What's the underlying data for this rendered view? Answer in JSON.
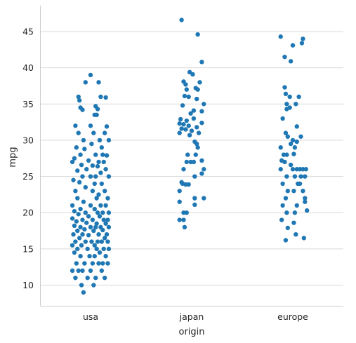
{
  "chart_data": {
    "type": "scatter",
    "subtype": "strip",
    "xlabel": "origin",
    "ylabel": "mpg",
    "ylim": [
      7,
      48.5
    ],
    "yticks": [
      10,
      15,
      20,
      25,
      30,
      35,
      40,
      45
    ],
    "grid": "horizontal",
    "color": "#1f77b4",
    "categories": [
      "usa",
      "japan",
      "europe"
    ],
    "series": [
      {
        "category": "usa",
        "points": [
          {
            "x": 0.0,
            "y": 39.0
          },
          {
            "x": -0.05,
            "y": 38.0
          },
          {
            "x": 0.08,
            "y": 38.0
          },
          {
            "x": 0.1,
            "y": 36.0
          },
          {
            "x": -0.12,
            "y": 36.0
          },
          {
            "x": 0.15,
            "y": 35.9
          },
          {
            "x": -0.11,
            "y": 35.5
          },
          {
            "x": 0.05,
            "y": 34.7
          },
          {
            "x": -0.1,
            "y": 34.5
          },
          {
            "x": 0.07,
            "y": 34.3
          },
          {
            "x": -0.08,
            "y": 34.2
          },
          {
            "x": 0.04,
            "y": 33.5
          },
          {
            "x": 0.06,
            "y": 33.5
          },
          {
            "x": -0.15,
            "y": 32.0
          },
          {
            "x": 0.0,
            "y": 32.0
          },
          {
            "x": 0.16,
            "y": 31.9
          },
          {
            "x": -0.12,
            "y": 31.0
          },
          {
            "x": 0.03,
            "y": 31.0
          },
          {
            "x": 0.14,
            "y": 31.0
          },
          {
            "x": -0.07,
            "y": 30.0
          },
          {
            "x": 0.09,
            "y": 30.0
          },
          {
            "x": 0.18,
            "y": 30.0
          },
          {
            "x": -0.14,
            "y": 29.0
          },
          {
            "x": 0.01,
            "y": 29.5
          },
          {
            "x": 0.11,
            "y": 29.0
          },
          {
            "x": -0.06,
            "y": 28.8
          },
          {
            "x": -0.1,
            "y": 28.0
          },
          {
            "x": 0.05,
            "y": 28.0
          },
          {
            "x": 0.12,
            "y": 28.0
          },
          {
            "x": 0.16,
            "y": 27.9
          },
          {
            "x": -0.16,
            "y": 27.5
          },
          {
            "x": -0.02,
            "y": 27.2
          },
          {
            "x": 0.08,
            "y": 27.0
          },
          {
            "x": 0.13,
            "y": 27.0
          },
          {
            "x": -0.18,
            "y": 27.0
          },
          {
            "x": -0.09,
            "y": 26.6
          },
          {
            "x": 0.02,
            "y": 26.5
          },
          {
            "x": 0.07,
            "y": 26.4
          },
          {
            "x": -0.04,
            "y": 26.0
          },
          {
            "x": 0.15,
            "y": 26.0
          },
          {
            "x": -0.13,
            "y": 25.8
          },
          {
            "x": 0.1,
            "y": 25.5
          },
          {
            "x": -0.08,
            "y": 25.0
          },
          {
            "x": 0.0,
            "y": 25.0
          },
          {
            "x": 0.05,
            "y": 25.0
          },
          {
            "x": 0.18,
            "y": 25.0
          },
          {
            "x": -0.17,
            "y": 24.5
          },
          {
            "x": -0.11,
            "y": 24.2
          },
          {
            "x": 0.04,
            "y": 24.0
          },
          {
            "x": 0.11,
            "y": 24.0
          },
          {
            "x": -0.05,
            "y": 23.5
          },
          {
            "x": 0.14,
            "y": 23.0
          },
          {
            "x": -0.15,
            "y": 23.0
          },
          {
            "x": 0.02,
            "y": 23.0
          },
          {
            "x": 0.08,
            "y": 22.5
          },
          {
            "x": -0.13,
            "y": 22.0
          },
          {
            "x": 0.06,
            "y": 22.0
          },
          {
            "x": 0.17,
            "y": 22.0
          },
          {
            "x": -0.07,
            "y": 21.5
          },
          {
            "x": -0.18,
            "y": 21.0
          },
          {
            "x": 0.0,
            "y": 21.0
          },
          {
            "x": 0.1,
            "y": 21.0
          },
          {
            "x": 0.15,
            "y": 21.0
          },
          {
            "x": -0.1,
            "y": 20.5
          },
          {
            "x": 0.04,
            "y": 20.5
          },
          {
            "x": -0.16,
            "y": 20.2
          },
          {
            "x": -0.05,
            "y": 20.0
          },
          {
            "x": 0.07,
            "y": 20.0
          },
          {
            "x": 0.12,
            "y": 20.0
          },
          {
            "x": 0.18,
            "y": 20.0
          },
          {
            "x": -0.12,
            "y": 19.8
          },
          {
            "x": -0.02,
            "y": 19.5
          },
          {
            "x": 0.09,
            "y": 19.5
          },
          {
            "x": -0.18,
            "y": 19.2
          },
          {
            "x": -0.08,
            "y": 19.0
          },
          {
            "x": 0.02,
            "y": 19.0
          },
          {
            "x": 0.13,
            "y": 19.0
          },
          {
            "x": 0.17,
            "y": 19.0
          },
          {
            "x": -0.14,
            "y": 18.8
          },
          {
            "x": -0.04,
            "y": 18.6
          },
          {
            "x": 0.06,
            "y": 18.5
          },
          {
            "x": 0.15,
            "y": 18.5
          },
          {
            "x": -0.16,
            "y": 18.2
          },
          {
            "x": -0.1,
            "y": 18.0
          },
          {
            "x": 0.0,
            "y": 18.0
          },
          {
            "x": 0.05,
            "y": 18.0
          },
          {
            "x": 0.1,
            "y": 18.0
          },
          {
            "x": 0.18,
            "y": 18.0
          },
          {
            "x": -0.06,
            "y": 17.7
          },
          {
            "x": 0.12,
            "y": 17.6
          },
          {
            "x": -0.13,
            "y": 17.5
          },
          {
            "x": 0.03,
            "y": 17.5
          },
          {
            "x": -0.17,
            "y": 17.0
          },
          {
            "x": -0.08,
            "y": 17.0
          },
          {
            "x": 0.08,
            "y": 17.0
          },
          {
            "x": 0.16,
            "y": 17.0
          },
          {
            "x": -0.02,
            "y": 16.9
          },
          {
            "x": -0.11,
            "y": 16.5
          },
          {
            "x": 0.14,
            "y": 16.5
          },
          {
            "x": -0.15,
            "y": 16.0
          },
          {
            "x": -0.05,
            "y": 16.0
          },
          {
            "x": 0.01,
            "y": 16.0
          },
          {
            "x": 0.07,
            "y": 16.0
          },
          {
            "x": 0.11,
            "y": 16.0
          },
          {
            "x": 0.17,
            "y": 16.0
          },
          {
            "x": -0.18,
            "y": 15.5
          },
          {
            "x": -0.09,
            "y": 15.5
          },
          {
            "x": 0.04,
            "y": 15.5
          },
          {
            "x": -0.13,
            "y": 15.0
          },
          {
            "x": -0.03,
            "y": 15.0
          },
          {
            "x": 0.06,
            "y": 15.0
          },
          {
            "x": 0.13,
            "y": 15.0
          },
          {
            "x": 0.18,
            "y": 15.0
          },
          {
            "x": -0.16,
            "y": 14.5
          },
          {
            "x": 0.09,
            "y": 14.5
          },
          {
            "x": -0.1,
            "y": 14.0
          },
          {
            "x": -0.01,
            "y": 14.0
          },
          {
            "x": 0.04,
            "y": 14.0
          },
          {
            "x": 0.15,
            "y": 14.0
          },
          {
            "x": -0.14,
            "y": 13.0
          },
          {
            "x": -0.06,
            "y": 13.0
          },
          {
            "x": 0.02,
            "y": 13.0
          },
          {
            "x": 0.08,
            "y": 13.0
          },
          {
            "x": 0.12,
            "y": 13.0
          },
          {
            "x": 0.17,
            "y": 13.0
          },
          {
            "x": -0.18,
            "y": 12.0
          },
          {
            "x": -0.08,
            "y": 12.0
          },
          {
            "x": -0.12,
            "y": 12.0
          },
          {
            "x": 0.0,
            "y": 12.0
          },
          {
            "x": 0.11,
            "y": 12.0
          },
          {
            "x": -0.15,
            "y": 11.0
          },
          {
            "x": -0.03,
            "y": 11.0
          },
          {
            "x": 0.05,
            "y": 11.0
          },
          {
            "x": 0.14,
            "y": 11.0
          },
          {
            "x": -0.09,
            "y": 10.0
          },
          {
            "x": 0.03,
            "y": 10.0
          },
          {
            "x": -0.07,
            "y": 9.0
          }
        ]
      },
      {
        "category": "japan",
        "points": [
          {
            "x": -0.1,
            "y": 46.6
          },
          {
            "x": 0.06,
            "y": 44.6
          },
          {
            "x": 0.1,
            "y": 40.8
          },
          {
            "x": -0.02,
            "y": 39.4
          },
          {
            "x": 0.01,
            "y": 39.1
          },
          {
            "x": -0.08,
            "y": 38.1
          },
          {
            "x": -0.06,
            "y": 37.7
          },
          {
            "x": 0.08,
            "y": 38.0
          },
          {
            "x": 0.04,
            "y": 37.2
          },
          {
            "x": -0.05,
            "y": 37.0
          },
          {
            "x": 0.06,
            "y": 37.0
          },
          {
            "x": -0.07,
            "y": 36.1
          },
          {
            "x": -0.03,
            "y": 36.0
          },
          {
            "x": 0.05,
            "y": 35.7
          },
          {
            "x": 0.12,
            "y": 35.0
          },
          {
            "x": -0.09,
            "y": 34.8
          },
          {
            "x": 0.02,
            "y": 34.1
          },
          {
            "x": 0.1,
            "y": 34.0
          },
          {
            "x": -0.01,
            "y": 33.7
          },
          {
            "x": 0.02,
            "y": 33.0
          },
          {
            "x": -0.11,
            "y": 32.9
          },
          {
            "x": -0.05,
            "y": 32.7
          },
          {
            "x": -0.12,
            "y": 32.3
          },
          {
            "x": -0.08,
            "y": 32.2
          },
          {
            "x": 0.1,
            "y": 32.4
          },
          {
            "x": -0.03,
            "y": 32.0
          },
          {
            "x": 0.05,
            "y": 31.8
          },
          {
            "x": -0.1,
            "y": 31.6
          },
          {
            "x": -0.06,
            "y": 31.5
          },
          {
            "x": 0.0,
            "y": 31.3
          },
          {
            "x": 0.07,
            "y": 31.0
          },
          {
            "x": -0.12,
            "y": 31.0
          },
          {
            "x": -0.02,
            "y": 30.7
          },
          {
            "x": 0.03,
            "y": 29.8
          },
          {
            "x": 0.05,
            "y": 29.5
          },
          {
            "x": 0.06,
            "y": 29.0
          },
          {
            "x": -0.04,
            "y": 28.0
          },
          {
            "x": 0.04,
            "y": 28.0
          },
          {
            "x": 0.1,
            "y": 27.2
          },
          {
            "x": -0.05,
            "y": 27.0
          },
          {
            "x": -0.01,
            "y": 27.0
          },
          {
            "x": 0.02,
            "y": 27.0
          },
          {
            "x": 0.12,
            "y": 26.0
          },
          {
            "x": -0.08,
            "y": 26.0
          },
          {
            "x": 0.1,
            "y": 25.4
          },
          {
            "x": 0.03,
            "y": 25.0
          },
          {
            "x": -0.1,
            "y": 24.2
          },
          {
            "x": -0.09,
            "y": 24.0
          },
          {
            "x": -0.06,
            "y": 23.9
          },
          {
            "x": -0.03,
            "y": 23.9
          },
          {
            "x": -0.12,
            "y": 23.0
          },
          {
            "x": 0.03,
            "y": 22.0
          },
          {
            "x": 0.12,
            "y": 22.0
          },
          {
            "x": -0.12,
            "y": 21.5
          },
          {
            "x": 0.03,
            "y": 21.1
          },
          {
            "x": -0.08,
            "y": 20.0
          },
          {
            "x": -0.05,
            "y": 20.0
          },
          {
            "x": -0.12,
            "y": 19.0
          },
          {
            "x": -0.08,
            "y": 19.0
          },
          {
            "x": -0.07,
            "y": 18.0
          }
        ]
      },
      {
        "category": "europe",
        "points": [
          {
            "x": -0.12,
            "y": 44.3
          },
          {
            "x": 0.1,
            "y": 44.0
          },
          {
            "x": 0.09,
            "y": 43.4
          },
          {
            "x": 0.0,
            "y": 43.1
          },
          {
            "x": -0.08,
            "y": 41.5
          },
          {
            "x": -0.02,
            "y": 40.9
          },
          {
            "x": -0.08,
            "y": 37.3
          },
          {
            "x": -0.07,
            "y": 36.4
          },
          {
            "x": -0.03,
            "y": 36.0
          },
          {
            "x": 0.06,
            "y": 36.0
          },
          {
            "x": -0.06,
            "y": 35.0
          },
          {
            "x": 0.03,
            "y": 35.0
          },
          {
            "x": -0.06,
            "y": 34.3
          },
          {
            "x": -0.03,
            "y": 34.5
          },
          {
            "x": -0.1,
            "y": 33.0
          },
          {
            "x": 0.04,
            "y": 31.9
          },
          {
            "x": -0.07,
            "y": 31.0
          },
          {
            "x": -0.05,
            "y": 30.5
          },
          {
            "x": 0.08,
            "y": 30.5
          },
          {
            "x": 0.0,
            "y": 30.0
          },
          {
            "x": 0.04,
            "y": 29.8
          },
          {
            "x": -0.12,
            "y": 29.0
          },
          {
            "x": -0.02,
            "y": 29.5
          },
          {
            "x": 0.02,
            "y": 29.0
          },
          {
            "x": -0.09,
            "y": 28.0
          },
          {
            "x": -0.06,
            "y": 28.0
          },
          {
            "x": 0.01,
            "y": 28.1
          },
          {
            "x": -0.11,
            "y": 27.2
          },
          {
            "x": -0.08,
            "y": 27.0
          },
          {
            "x": -0.02,
            "y": 26.6
          },
          {
            "x": -0.12,
            "y": 26.0
          },
          {
            "x": 0.0,
            "y": 26.0
          },
          {
            "x": 0.04,
            "y": 26.0
          },
          {
            "x": 0.07,
            "y": 26.0
          },
          {
            "x": 0.1,
            "y": 26.0
          },
          {
            "x": 0.13,
            "y": 26.0
          },
          {
            "x": -0.06,
            "y": 25.0
          },
          {
            "x": 0.02,
            "y": 25.0
          },
          {
            "x": 0.08,
            "y": 25.0
          },
          {
            "x": 0.12,
            "y": 25.0
          },
          {
            "x": -0.1,
            "y": 24.0
          },
          {
            "x": 0.05,
            "y": 24.0
          },
          {
            "x": 0.07,
            "y": 24.0
          },
          {
            "x": -0.05,
            "y": 23.0
          },
          {
            "x": 0.01,
            "y": 23.0
          },
          {
            "x": 0.1,
            "y": 23.0
          },
          {
            "x": -0.07,
            "y": 22.0
          },
          {
            "x": 0.12,
            "y": 22.0
          },
          {
            "x": 0.12,
            "y": 21.5
          },
          {
            "x": 0.04,
            "y": 21.0
          },
          {
            "x": -0.1,
            "y": 21.0
          },
          {
            "x": -0.06,
            "y": 20.0
          },
          {
            "x": 0.02,
            "y": 20.0
          },
          {
            "x": 0.14,
            "y": 20.3
          },
          {
            "x": -0.11,
            "y": 19.0
          },
          {
            "x": 0.01,
            "y": 18.6
          },
          {
            "x": -0.05,
            "y": 17.9
          },
          {
            "x": 0.03,
            "y": 17.0
          },
          {
            "x": 0.11,
            "y": 16.5
          },
          {
            "x": -0.07,
            "y": 16.2
          }
        ]
      }
    ]
  }
}
